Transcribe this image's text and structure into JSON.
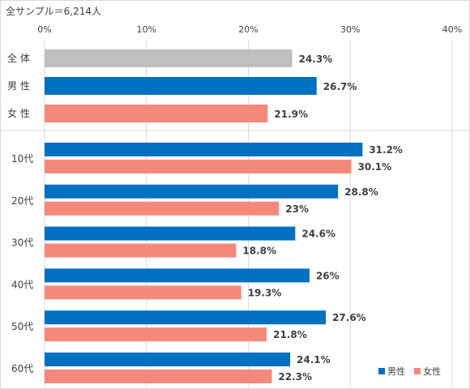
{
  "sample_note": "全サンプル＝6,214人",
  "colors": {
    "all": "#bfbfbf",
    "male": "#0070c0",
    "female": "#f4897b",
    "grid": "#d9d9d9"
  },
  "chart_data": {
    "type": "bar",
    "orientation": "horizontal",
    "xlim": [
      0,
      40
    ],
    "xticks": [
      "0%",
      "10%",
      "20%",
      "30%",
      "40%"
    ],
    "grid": true,
    "legend_position": "bottom-right",
    "legend": [
      "男性",
      "女性"
    ],
    "summary_rows": [
      {
        "label": "全 体",
        "value": 24.3,
        "value_label": "24.3%",
        "color_key": "all"
      },
      {
        "label": "男 性",
        "value": 26.7,
        "value_label": "26.7%",
        "color_key": "male"
      },
      {
        "label": "女 性",
        "value": 21.9,
        "value_label": "21.9%",
        "color_key": "female"
      }
    ],
    "age_groups": [
      {
        "label": "10代",
        "male": 31.2,
        "male_label": "31.2%",
        "female": 30.1,
        "female_label": "30.1%"
      },
      {
        "label": "20代",
        "male": 28.8,
        "male_label": "28.8%",
        "female": 23.0,
        "female_label": "23%"
      },
      {
        "label": "30代",
        "male": 24.6,
        "male_label": "24.6%",
        "female": 18.8,
        "female_label": "18.8%"
      },
      {
        "label": "40代",
        "male": 26.0,
        "male_label": "26%",
        "female": 19.3,
        "female_label": "19.3%"
      },
      {
        "label": "50代",
        "male": 27.6,
        "male_label": "27.6%",
        "female": 21.8,
        "female_label": "21.8%"
      },
      {
        "label": "60代",
        "male": 24.1,
        "male_label": "24.1%",
        "female": 22.3,
        "female_label": "22.3%"
      }
    ]
  }
}
